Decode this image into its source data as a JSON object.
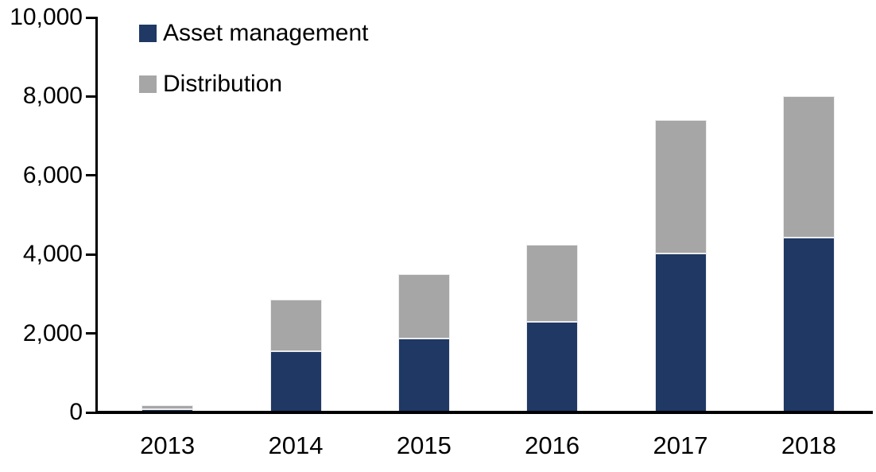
{
  "chart_data": {
    "type": "bar",
    "stacked": true,
    "title": "",
    "xlabel": "",
    "ylabel": "",
    "categories": [
      "2013",
      "2014",
      "2015",
      "2016",
      "2017",
      "2018"
    ],
    "series": [
      {
        "name": "Asset management",
        "color": "#1F3864",
        "values": [
          80,
          1540,
          1880,
          2300,
          4030,
          4420
        ]
      },
      {
        "name": "Distribution",
        "color": "#A6A6A6",
        "values": [
          110,
          1310,
          1620,
          1950,
          3370,
          3580
        ]
      }
    ],
    "totals": [
      190,
      2850,
      3500,
      4250,
      7400,
      8000
    ],
    "ylim": [
      0,
      10000
    ],
    "ytick_interval": 2000,
    "ytick_values": [
      0,
      2000,
      4000,
      6000,
      8000,
      10000
    ],
    "ytick_labels": [
      "0",
      "2,000",
      "4,000",
      "6,000",
      "8,000",
      "10,000"
    ],
    "grid": false,
    "legend_position": "top-left",
    "bar_outline_color": "#ECECEC",
    "axis_color": "#000000"
  }
}
